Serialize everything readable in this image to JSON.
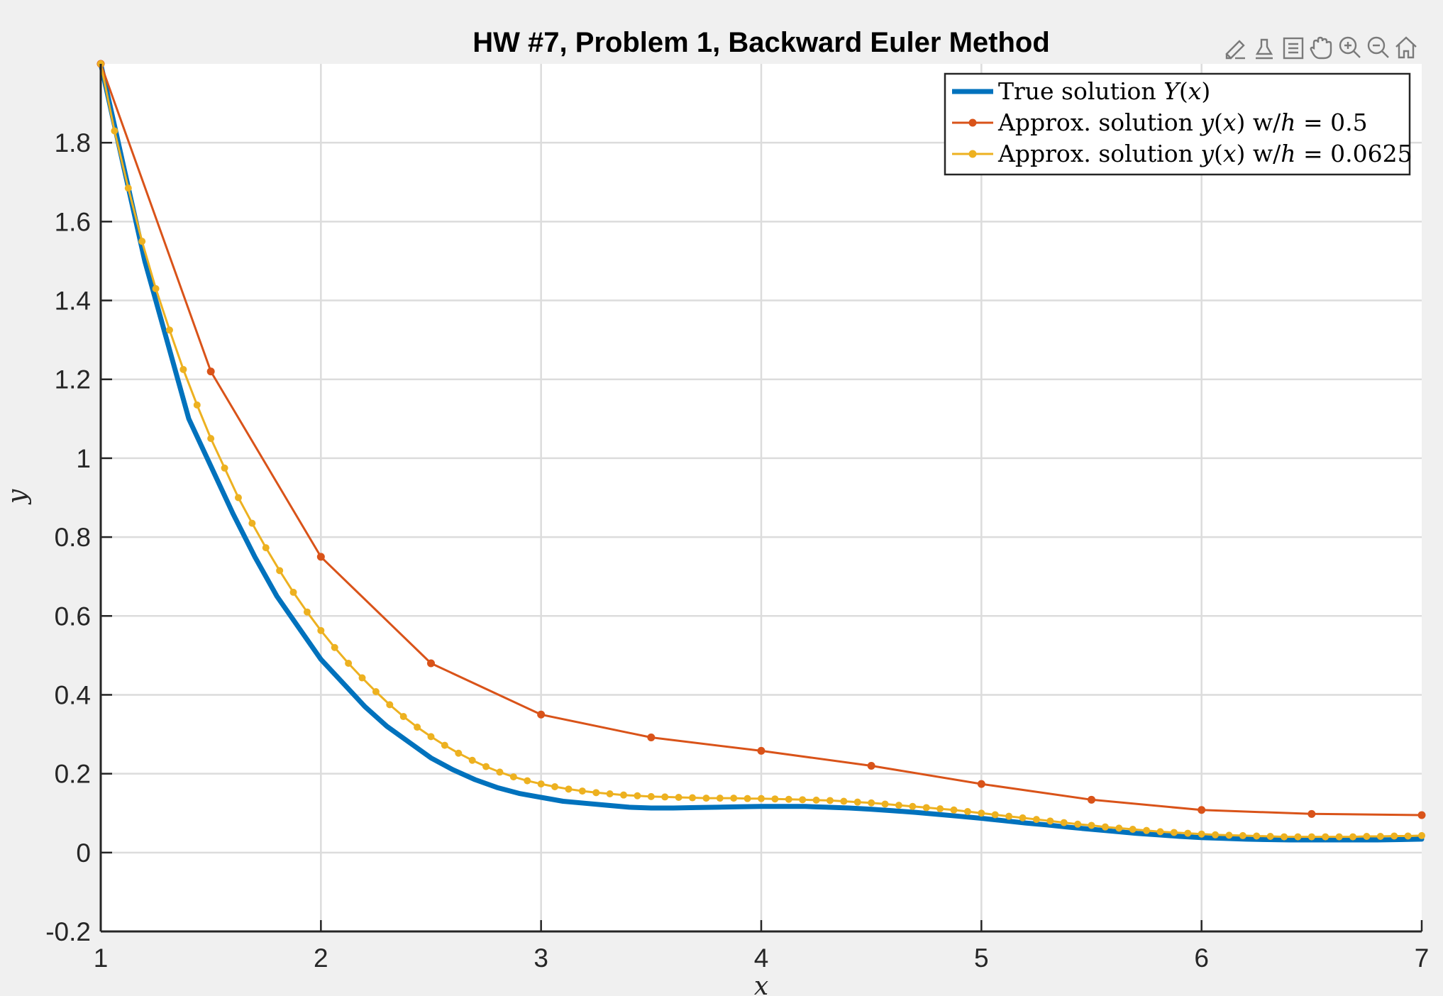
{
  "toolbar": {
    "icons": [
      "brush-icon",
      "data-tips-icon",
      "legend-icon",
      "pan-hand-icon",
      "zoom-in-icon",
      "zoom-out-icon",
      "home-icon"
    ]
  },
  "chart_data": {
    "type": "line",
    "title": "HW #7, Problem 1, Backward Euler Method",
    "xlabel": "x",
    "ylabel": "y",
    "xlim": [
      1,
      7
    ],
    "ylim": [
      -0.2,
      2.0
    ],
    "xticks": [
      1,
      2,
      3,
      4,
      5,
      6,
      7
    ],
    "yticks": [
      -0.2,
      0,
      0.2,
      0.4,
      0.6,
      0.8,
      1,
      1.2,
      1.4,
      1.6,
      1.8
    ],
    "xtick_labels": [
      "1",
      "2",
      "3",
      "4",
      "5",
      "6",
      "7"
    ],
    "ytick_labels": [
      "-0.2",
      "0",
      "0.2",
      "0.4",
      "0.6",
      "0.8",
      "1",
      "1.2",
      "1.4",
      "1.6",
      "1.8"
    ],
    "grid": true,
    "legend_position": "top-right",
    "series": [
      {
        "name": "True solution Y(x)",
        "legend": [
          {
            "t": "True solution "
          },
          {
            "t": "Y",
            "m": true
          },
          {
            "t": "("
          },
          {
            "t": "x",
            "m": true
          },
          {
            "t": ")"
          }
        ],
        "color": "#0072BD",
        "markers": false,
        "x": [
          1,
          1.1,
          1.2,
          1.3,
          1.4,
          1.5,
          1.6,
          1.7,
          1.8,
          1.9,
          2.0,
          2.1,
          2.2,
          2.3,
          2.4,
          2.5,
          2.6,
          2.7,
          2.8,
          2.9,
          3.0,
          3.1,
          3.2,
          3.3,
          3.4,
          3.5,
          3.6,
          3.7,
          3.8,
          3.9,
          4.0,
          4.1,
          4.2,
          4.3,
          4.4,
          4.5,
          4.6,
          4.7,
          4.8,
          4.9,
          5.0,
          5.1,
          5.2,
          5.3,
          5.4,
          5.5,
          5.6,
          5.7,
          5.8,
          5.9,
          6.0,
          6.1,
          6.2,
          6.3,
          6.4,
          6.5,
          6.6,
          6.7,
          6.8,
          6.9,
          7.0
        ],
        "y": [
          2.0,
          1.75,
          1.5,
          1.3,
          1.1,
          0.98,
          0.86,
          0.75,
          0.65,
          0.57,
          0.49,
          0.43,
          0.37,
          0.32,
          0.28,
          0.24,
          0.21,
          0.185,
          0.165,
          0.15,
          0.14,
          0.13,
          0.125,
          0.12,
          0.115,
          0.113,
          0.113,
          0.114,
          0.115,
          0.116,
          0.117,
          0.117,
          0.117,
          0.115,
          0.113,
          0.11,
          0.106,
          0.102,
          0.097,
          0.092,
          0.087,
          0.081,
          0.075,
          0.07,
          0.064,
          0.059,
          0.054,
          0.049,
          0.045,
          0.041,
          0.038,
          0.036,
          0.034,
          0.033,
          0.032,
          0.032,
          0.032,
          0.032,
          0.032,
          0.033,
          0.034
        ]
      },
      {
        "name": "Approx. solution y(x) w/h = 0.5",
        "legend": [
          {
            "t": "Approx.  solution "
          },
          {
            "t": "y",
            "m": true
          },
          {
            "t": "("
          },
          {
            "t": "x",
            "m": true
          },
          {
            "t": ") w/"
          },
          {
            "t": "h",
            "m": true
          },
          {
            "t": " = 0.5"
          }
        ],
        "color": "#D95319",
        "markers": true,
        "x": [
          1,
          1.5,
          2,
          2.5,
          3,
          3.5,
          4,
          4.5,
          5,
          5.5,
          6,
          6.5,
          7
        ],
        "y": [
          2.0,
          1.22,
          0.75,
          0.48,
          0.35,
          0.292,
          0.258,
          0.22,
          0.174,
          0.134,
          0.108,
          0.098,
          0.095
        ]
      },
      {
        "name": "Approx. solution y(x) w/h = 0.0625",
        "legend": [
          {
            "t": "Approx.  solution "
          },
          {
            "t": "y",
            "m": true
          },
          {
            "t": "("
          },
          {
            "t": "x",
            "m": true
          },
          {
            "t": ") w/"
          },
          {
            "t": "h",
            "m": true
          },
          {
            "t": " = 0.0625"
          }
        ],
        "color": "#EDB120",
        "markers": true,
        "x": [
          1,
          1.0625,
          1.125,
          1.1875,
          1.25,
          1.3125,
          1.375,
          1.4375,
          1.5,
          1.5625,
          1.625,
          1.6875,
          1.75,
          1.8125,
          1.875,
          1.9375,
          2,
          2.0625,
          2.125,
          2.1875,
          2.25,
          2.3125,
          2.375,
          2.4375,
          2.5,
          2.5625,
          2.625,
          2.6875,
          2.75,
          2.8125,
          2.875,
          2.9375,
          3,
          3.0625,
          3.125,
          3.1875,
          3.25,
          3.3125,
          3.375,
          3.4375,
          3.5,
          3.5625,
          3.625,
          3.6875,
          3.75,
          3.8125,
          3.875,
          3.9375,
          4,
          4.0625,
          4.125,
          4.1875,
          4.25,
          4.3125,
          4.375,
          4.4375,
          4.5,
          4.5625,
          4.625,
          4.6875,
          4.75,
          4.8125,
          4.875,
          4.9375,
          5,
          5.0625,
          5.125,
          5.1875,
          5.25,
          5.3125,
          5.375,
          5.4375,
          5.5,
          5.5625,
          5.625,
          5.6875,
          5.75,
          5.8125,
          5.875,
          5.9375,
          6,
          6.0625,
          6.125,
          6.1875,
          6.25,
          6.3125,
          6.375,
          6.4375,
          6.5,
          6.5625,
          6.625,
          6.6875,
          6.75,
          6.8125,
          6.875,
          6.9375,
          7
        ],
        "y": [
          2.0,
          1.83,
          1.685,
          1.55,
          1.43,
          1.325,
          1.225,
          1.135,
          1.05,
          0.975,
          0.9,
          0.835,
          0.773,
          0.715,
          0.66,
          0.61,
          0.563,
          0.52,
          0.48,
          0.443,
          0.408,
          0.375,
          0.345,
          0.318,
          0.294,
          0.272,
          0.252,
          0.234,
          0.218,
          0.204,
          0.192,
          0.182,
          0.174,
          0.167,
          0.161,
          0.156,
          0.152,
          0.149,
          0.146,
          0.144,
          0.142,
          0.141,
          0.14,
          0.139,
          0.138,
          0.138,
          0.138,
          0.137,
          0.137,
          0.136,
          0.135,
          0.134,
          0.133,
          0.132,
          0.13,
          0.128,
          0.126,
          0.123,
          0.12,
          0.117,
          0.114,
          0.111,
          0.108,
          0.104,
          0.1,
          0.096,
          0.092,
          0.088,
          0.084,
          0.08,
          0.076,
          0.072,
          0.069,
          0.065,
          0.062,
          0.059,
          0.056,
          0.053,
          0.051,
          0.049,
          0.047,
          0.045,
          0.044,
          0.043,
          0.042,
          0.041,
          0.04,
          0.04,
          0.04,
          0.04,
          0.04,
          0.04,
          0.041,
          0.041,
          0.042,
          0.042,
          0.043
        ]
      }
    ]
  }
}
